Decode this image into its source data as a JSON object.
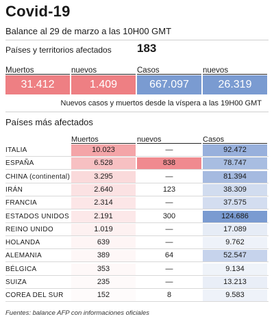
{
  "header": {
    "title": "Covid-19",
    "subtitle": "Balance al 29 de marzo a las 10H00 GMT",
    "countries_label": "Países y territorios afectados",
    "countries_value": "183"
  },
  "totals": {
    "headers": [
      "Muertos",
      "nuevos",
      "Casos",
      "nuevos"
    ],
    "values": [
      "31.412",
      "1.409",
      "667.097",
      "26.319"
    ],
    "colors": [
      "#ee7f83",
      "#ee7f83",
      "#7a9bd1",
      "#7a9bd1"
    ]
  },
  "note": "Nuevos casos y muertos desde la víspera a las 19H00 GMT",
  "table": {
    "title": "Países más afectados",
    "headers": [
      "Muertos",
      "nuevos",
      "Casos"
    ],
    "rows": [
      {
        "country": "ITALIA",
        "deaths": "10.023",
        "new": "—",
        "cases": "92.472",
        "dcol": "#f4a5a8",
        "ccol": "#98b0dc"
      },
      {
        "country": "ESPAÑA",
        "deaths": "6.528",
        "new": "838",
        "cases": "78.747",
        "dcol": "#f7c0c2",
        "ccol": "#a8bde1"
      },
      {
        "country": "CHINA (continental)",
        "deaths": "3.295",
        "new": "—",
        "cases": "81.394",
        "dcol": "#fadadb",
        "ccol": "#a5bae0"
      },
      {
        "country": "IRÁN",
        "deaths": "2.640",
        "new": "123",
        "cases": "38.309",
        "dcol": "#fbe2e3",
        "ccol": "#d1dcef"
      },
      {
        "country": "FRANCIA",
        "deaths": "2.314",
        "new": "—",
        "cases": "37.575",
        "dcol": "#fce6e7",
        "ccol": "#d3ddf0"
      },
      {
        "country": "ESTADOS UNIDOS",
        "deaths": "2.191",
        "new": "300",
        "cases": "124.686",
        "dcol": "#fce8e9",
        "ccol": "#7a9bd1"
      },
      {
        "country": "REINO UNIDO",
        "deaths": "1.019",
        "new": "—",
        "cases": "17.089",
        "dcol": "#fdf1f1",
        "ccol": "#e6ecf6"
      },
      {
        "country": "HOLANDA",
        "deaths": "639",
        "new": "—",
        "cases": "9.762",
        "dcol": "#fef5f5",
        "ccol": "#eef2f9"
      },
      {
        "country": "ALEMANIA",
        "deaths": "389",
        "new": "64",
        "cases": "52.547",
        "dcol": "#fef7f7",
        "ccol": "#c6d3ec"
      },
      {
        "country": "BÉLGICA",
        "deaths": "353",
        "new": "—",
        "cases": "9.134",
        "dcol": "#fef8f8",
        "ccol": "#eff3f9"
      },
      {
        "country": "SUIZA",
        "deaths": "235",
        "new": "—",
        "cases": "13.213",
        "dcol": "#fefafa",
        "ccol": "#e9eef7"
      },
      {
        "country": "COREA DEL SUR",
        "deaths": "152",
        "new": "8",
        "cases": "9.583",
        "dcol": "#fefbfb",
        "ccol": "#eef2f9"
      }
    ]
  },
  "source": "Fuentes: balance AFP con informaciones oficiales"
}
